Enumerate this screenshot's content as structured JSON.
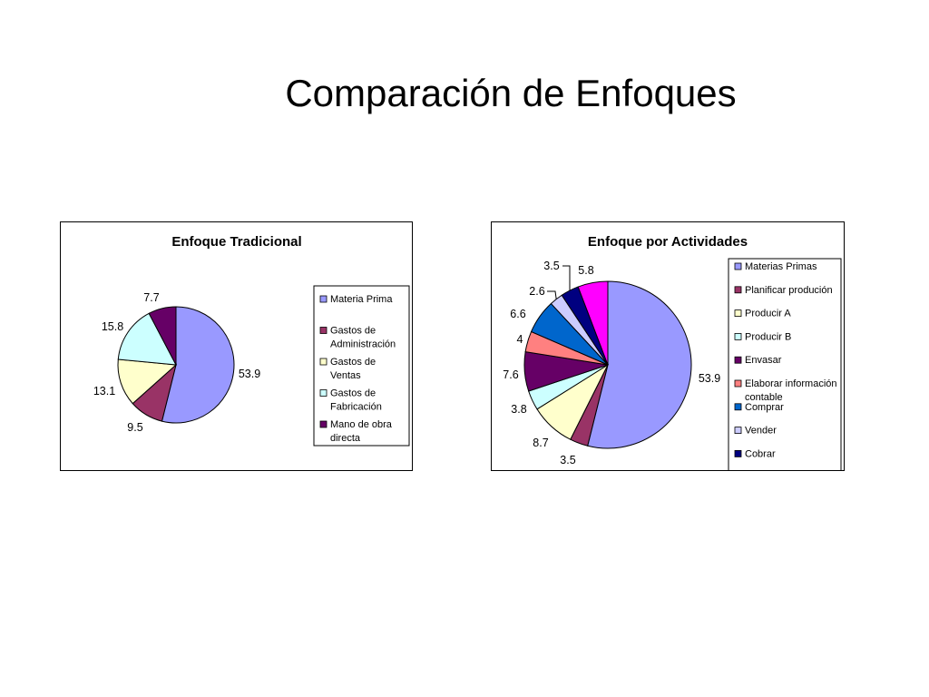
{
  "slide": {
    "title": "Comparación de Enfoques"
  },
  "chart_data": [
    {
      "type": "pie",
      "title": "Enfoque Tradicional",
      "legend_position": "right",
      "slices": [
        {
          "label": "Materia Prima",
          "legend_lines": [
            "Materia Prima"
          ],
          "value": 53.9,
          "value_label": "53.9",
          "color": "#9999FF"
        },
        {
          "label": "Gastos de Administración",
          "legend_lines": [
            "Gastos de",
            "Administración"
          ],
          "value": 9.5,
          "value_label": "9.5",
          "color": "#993366"
        },
        {
          "label": "Gastos de Ventas",
          "legend_lines": [
            "Gastos de",
            "Ventas"
          ],
          "value": 13.1,
          "value_label": "13.1",
          "color": "#FFFFCC"
        },
        {
          "label": "Gastos de Fabricación",
          "legend_lines": [
            "Gastos de",
            "Fabricación"
          ],
          "value": 15.8,
          "value_label": "15.8",
          "color": "#CCFFFF"
        },
        {
          "label": "Mano de obra directa",
          "legend_lines": [
            "Mano de obra",
            "directa"
          ],
          "value": 7.7,
          "value_label": "7.7",
          "color": "#660066"
        }
      ]
    },
    {
      "type": "pie",
      "title": "Enfoque por Actividades",
      "legend_position": "right",
      "slices": [
        {
          "label": "Materias Primas",
          "legend_lines": [
            "Materias Primas"
          ],
          "value": 53.9,
          "value_label": "53.9",
          "color": "#9999FF"
        },
        {
          "label": "Planificar produción",
          "legend_lines": [
            "Planificar produción"
          ],
          "value": 3.5,
          "value_label": "3.5",
          "color": "#993366"
        },
        {
          "label": "Producir A",
          "legend_lines": [
            "Producir A"
          ],
          "value": 8.7,
          "value_label": "8.7",
          "color": "#FFFFCC"
        },
        {
          "label": "Producir B",
          "legend_lines": [
            "Producir B"
          ],
          "value": 3.8,
          "value_label": "3.8",
          "color": "#CCFFFF"
        },
        {
          "label": "Envasar",
          "legend_lines": [
            "Envasar"
          ],
          "value": 7.6,
          "value_label": "7.6",
          "color": "#660066"
        },
        {
          "label": "Elaborar información contable",
          "legend_lines": [
            "Elaborar información",
            "contable"
          ],
          "value": 4,
          "value_label": "4",
          "color": "#FF8080"
        },
        {
          "label": "Comprar",
          "legend_lines": [
            "Comprar"
          ],
          "value": 6.6,
          "value_label": "6.6",
          "color": "#0066CC"
        },
        {
          "label": "Vender",
          "legend_lines": [
            "Vender"
          ],
          "value": 2.6,
          "value_label": "2.6",
          "color": "#CCCCFF"
        },
        {
          "label": "Cobrar",
          "legend_lines": [
            "Cobrar"
          ],
          "value": 3.5,
          "value_label": "3.5",
          "color": "#000080"
        },
        {
          "label": "",
          "legend_lines": [],
          "value": 5.8,
          "value_label": "5.8",
          "color": "#FF00FF"
        }
      ]
    }
  ]
}
